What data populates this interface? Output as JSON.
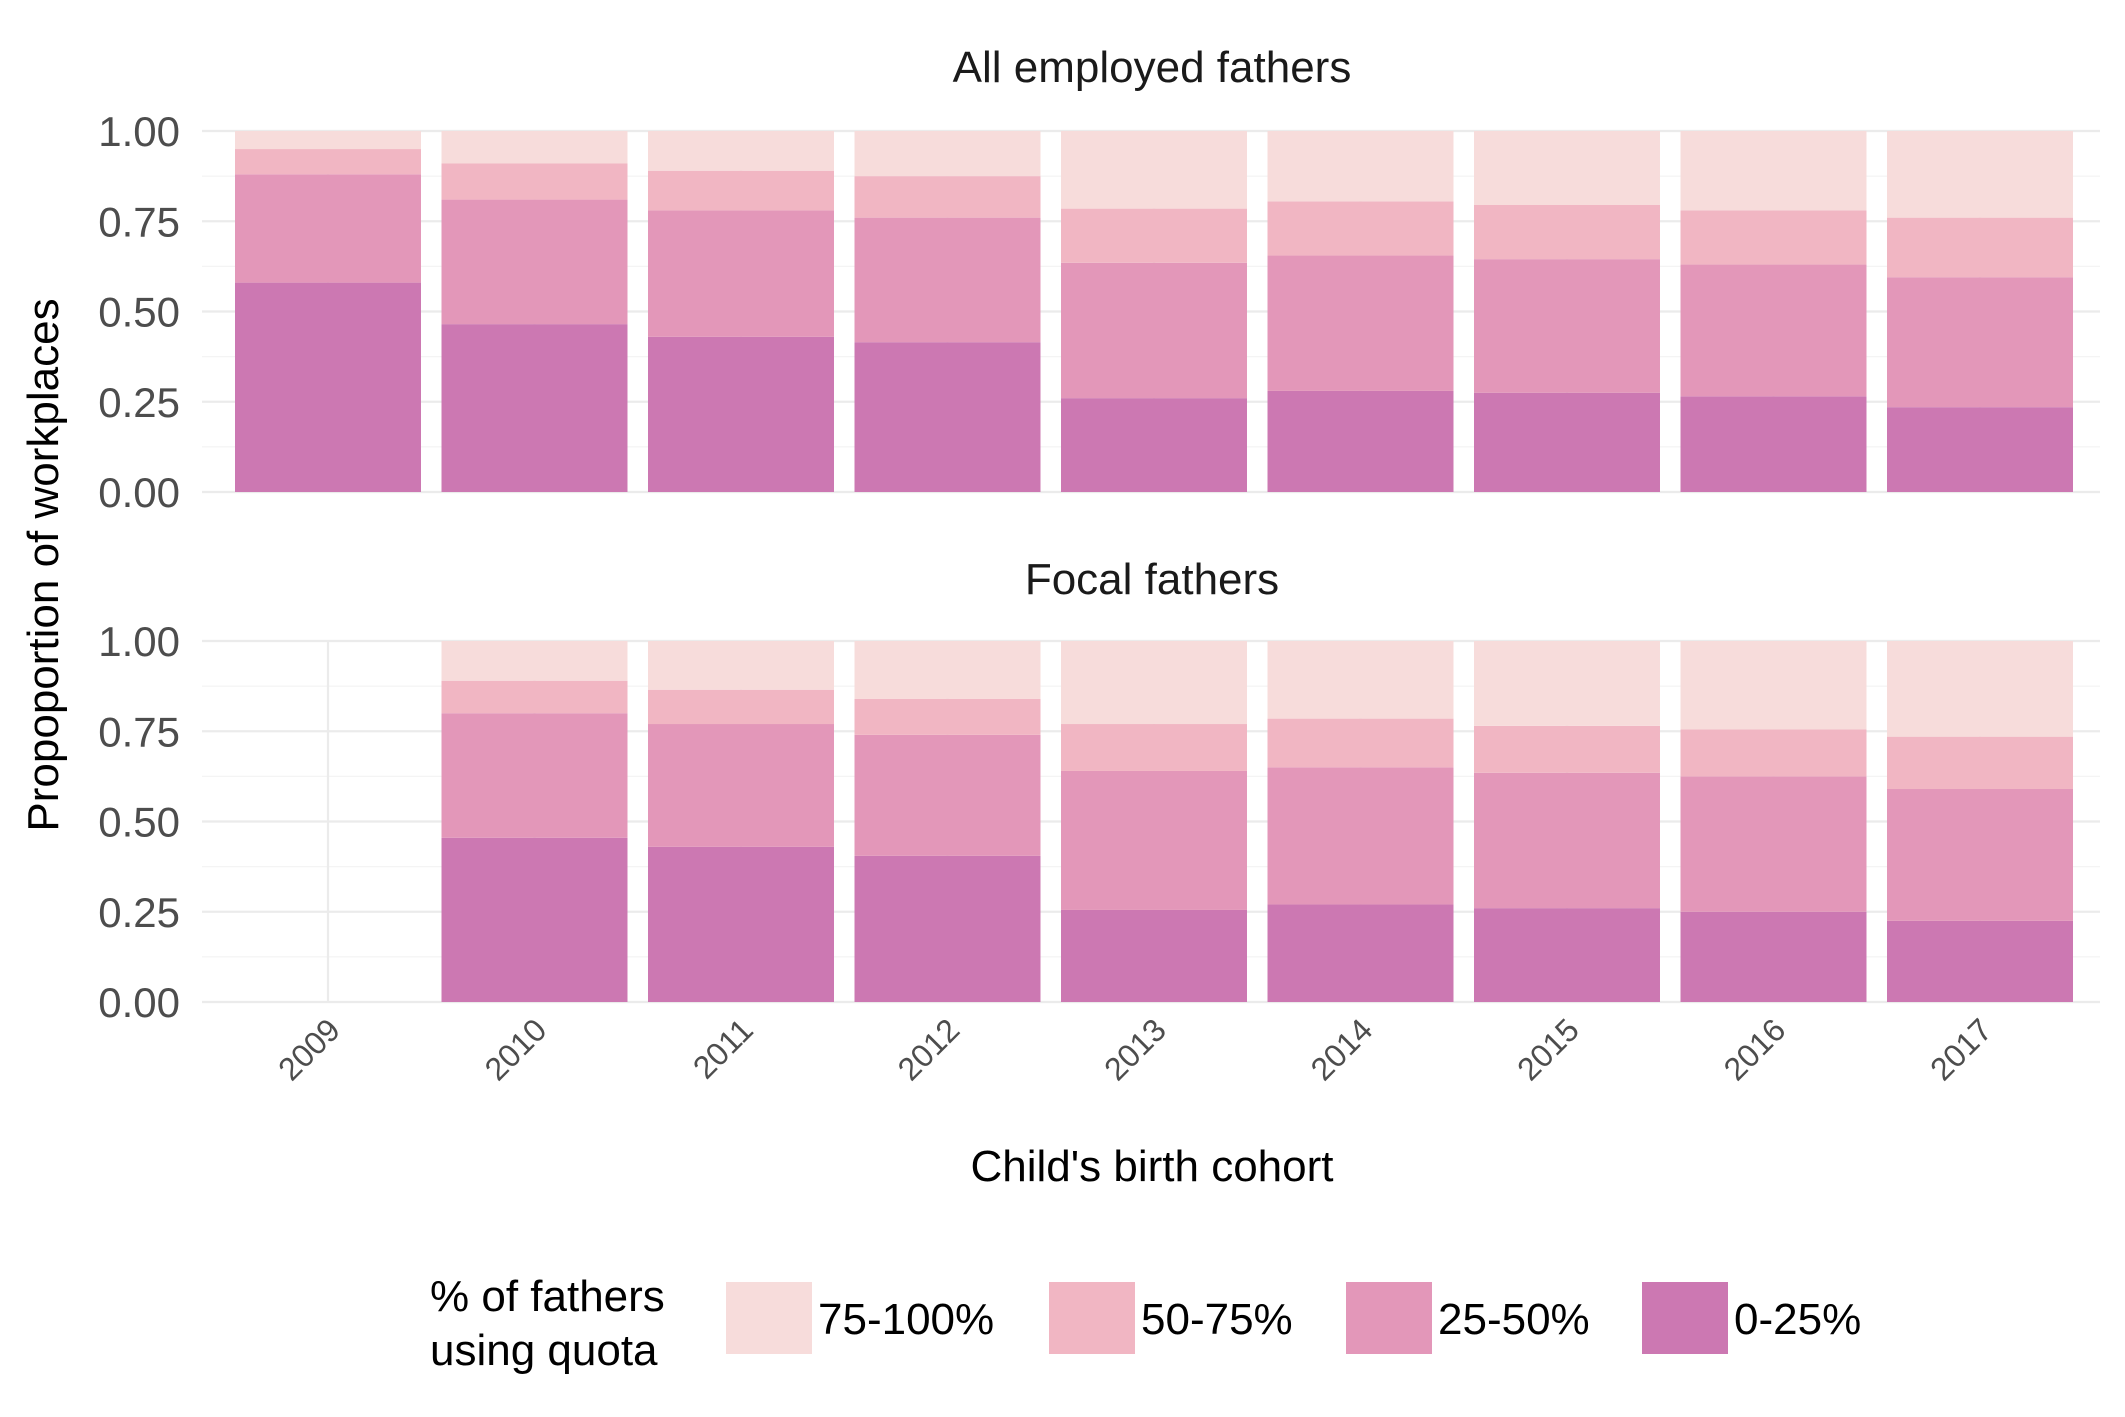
{
  "chart_data": {
    "type": "bar",
    "stacked": true,
    "x_title": "Child's birth cohort",
    "y_title": "Propoportion of workplaces",
    "y_ticks": [
      "0.00",
      "0.25",
      "0.50",
      "0.75",
      "1.00"
    ],
    "ylim": [
      0,
      1
    ],
    "categories": [
      "2009",
      "2010",
      "2011",
      "2012",
      "2013",
      "2014",
      "2015",
      "2016",
      "2017"
    ],
    "legend": {
      "title_line1": "% of fathers",
      "title_line2": "using quota",
      "position": "bottom",
      "items": [
        {
          "label": "75-100%",
          "color": "#f7dcdb"
        },
        {
          "label": "50-75%",
          "color": "#f1b6c3"
        },
        {
          "label": "25-50%",
          "color": "#e397b9"
        },
        {
          "label": "0-25%",
          "color": "#cc78b2"
        }
      ]
    },
    "series_order_bottom_to_top": [
      "0-25%",
      "25-50%",
      "50-75%",
      "75-100%"
    ],
    "panels": [
      {
        "title": "All employed fathers",
        "series": [
          {
            "name": "0-25%",
            "values": [
              0.58,
              0.465,
              0.43,
              0.415,
              0.26,
              0.28,
              0.275,
              0.265,
              0.235
            ]
          },
          {
            "name": "25-50%",
            "values": [
              0.3,
              0.345,
              0.35,
              0.345,
              0.375,
              0.375,
              0.37,
              0.365,
              0.36
            ]
          },
          {
            "name": "50-75%",
            "values": [
              0.07,
              0.1,
              0.11,
              0.115,
              0.15,
              0.15,
              0.15,
              0.15,
              0.165
            ]
          },
          {
            "name": "75-100%",
            "values": [
              0.05,
              0.09,
              0.11,
              0.125,
              0.215,
              0.195,
              0.205,
              0.22,
              0.24
            ]
          }
        ]
      },
      {
        "title": "Focal fathers",
        "series": [
          {
            "name": "0-25%",
            "values": [
              null,
              0.455,
              0.43,
              0.405,
              0.255,
              0.27,
              0.26,
              0.25,
              0.225
            ]
          },
          {
            "name": "25-50%",
            "values": [
              null,
              0.345,
              0.34,
              0.335,
              0.385,
              0.38,
              0.375,
              0.375,
              0.365
            ]
          },
          {
            "name": "50-75%",
            "values": [
              null,
              0.09,
              0.095,
              0.1,
              0.13,
              0.135,
              0.13,
              0.13,
              0.145
            ]
          },
          {
            "name": "75-100%",
            "values": [
              null,
              0.11,
              0.135,
              0.16,
              0.23,
              0.215,
              0.235,
              0.245,
              0.265
            ]
          }
        ]
      }
    ]
  }
}
